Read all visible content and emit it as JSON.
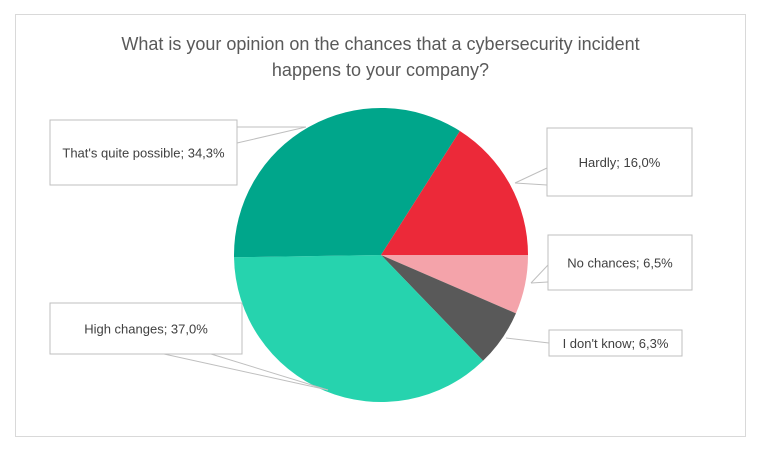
{
  "chart_data": {
    "type": "pie",
    "title_lines": [
      "What is your opinion on the chances that a cybersecurity incident",
      "happens to your company?"
    ],
    "start": "3 o'clock, clockwise",
    "slices": [
      {
        "label": "No chances; 6,5%",
        "category": "No chances",
        "value": 6.5,
        "color": "#f4a3aa"
      },
      {
        "label": "I don't know; 6,3%",
        "category": "I don't know",
        "value": 6.3,
        "color": "#595959"
      },
      {
        "label": "High changes; 37,0%",
        "category": "High changes",
        "value": 37.0,
        "color": "#26d3ae"
      },
      {
        "label": "That's quite possible; 34,3%",
        "category": "That's quite possible",
        "value": 34.3,
        "color": "#00a68b"
      },
      {
        "label": "Hardly; 16,0%",
        "category": "Hardly",
        "value": 16.0,
        "color": "#ec2939"
      }
    ],
    "legend": "none (data callouts)"
  }
}
